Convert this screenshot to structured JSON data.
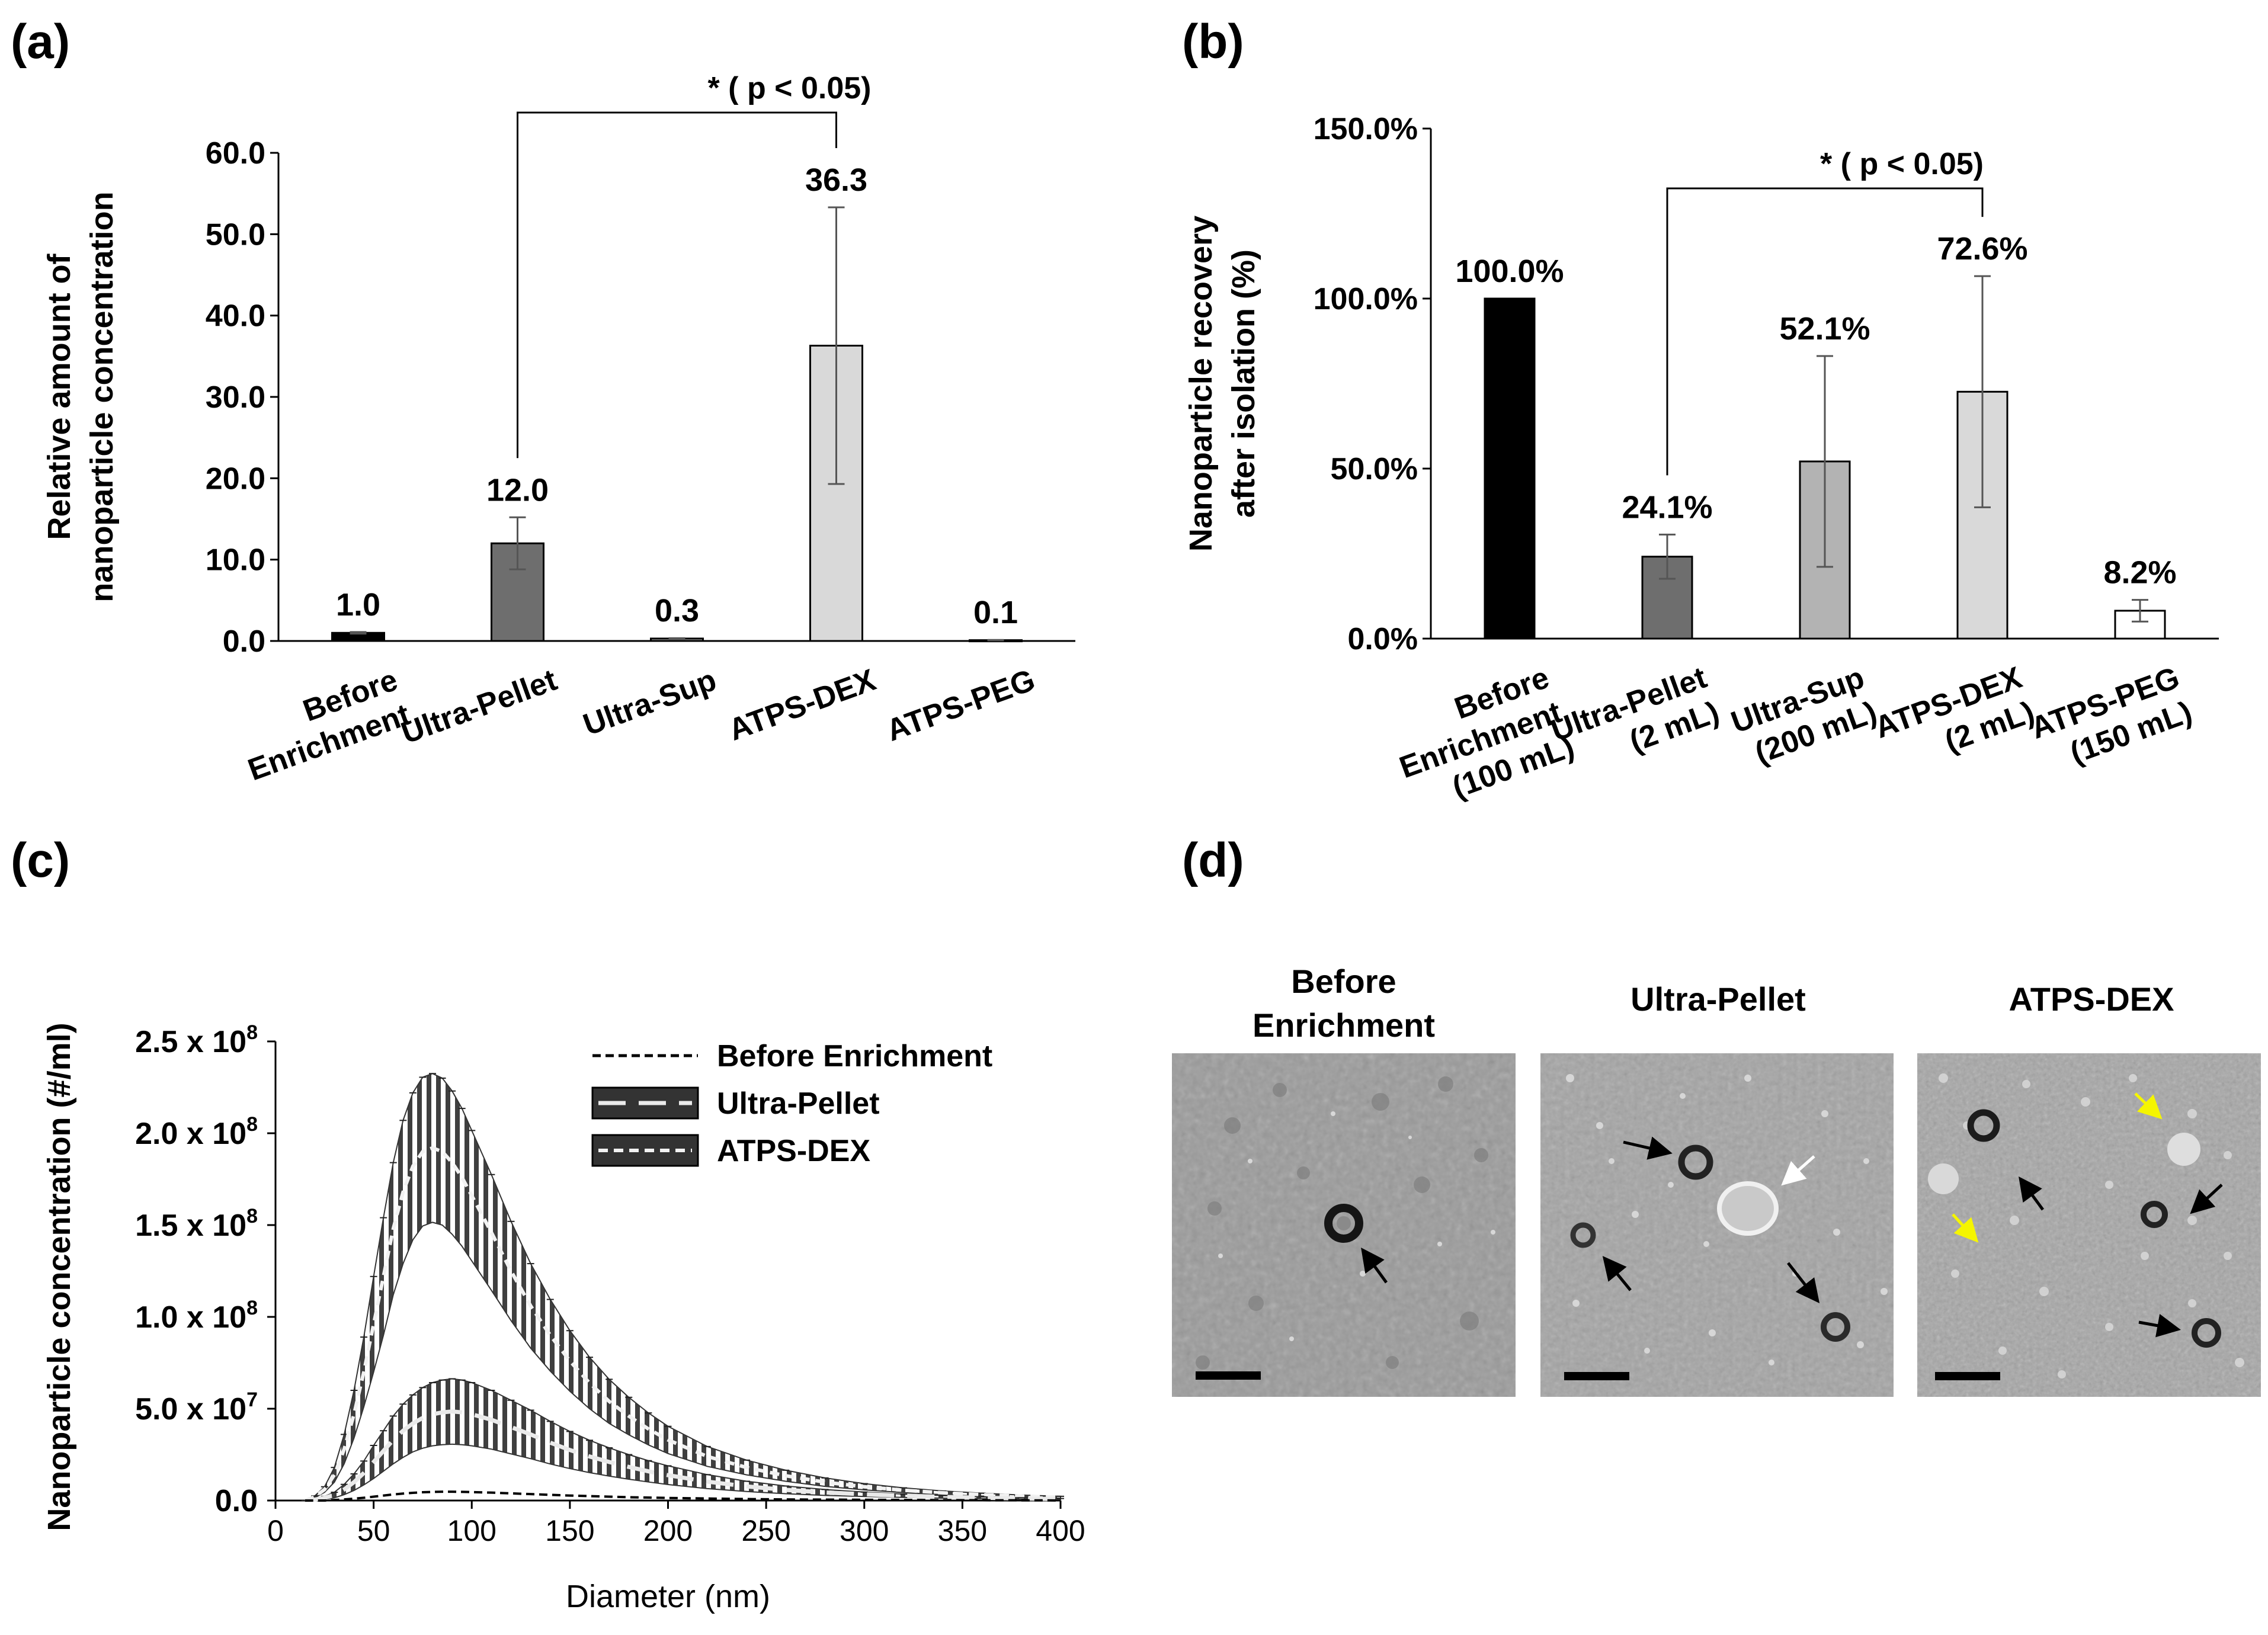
{
  "chart_data": [
    {
      "id": "a",
      "panel_label": "(a)",
      "type": "bar",
      "ylabel": [
        "Relative amount of",
        "nanoparticle concentration"
      ],
      "ylim": [
        0,
        60
      ],
      "yticks": [
        "0.0",
        "10.0",
        "20.0",
        "30.0",
        "40.0",
        "50.0",
        "60.0"
      ],
      "categories": [
        [
          "Before",
          "Enrichment"
        ],
        [
          "Ultra-Pellet"
        ],
        [
          "Ultra-Sup"
        ],
        [
          "ATPS-DEX"
        ],
        [
          "ATPS-PEG"
        ]
      ],
      "values": [
        1.0,
        12.0,
        0.3,
        36.3,
        0.1
      ],
      "errors": [
        0.1,
        3.2,
        0.05,
        17.0,
        0.03
      ],
      "value_labels": [
        "1.0",
        "12.0",
        "0.3",
        "36.3",
        "0.1"
      ],
      "colors": [
        "#000000",
        "#6e6e6e",
        "#a9a9a9",
        "#d9d9d9",
        "#ffffff"
      ],
      "significance": {
        "from": 1,
        "to": 3,
        "label": "* ( p < 0.05)"
      }
    },
    {
      "id": "b",
      "panel_label": "(b)",
      "type": "bar",
      "ylabel": [
        "Nanoparticle recovery",
        "after isolation (%)"
      ],
      "ylim": [
        0,
        150
      ],
      "yticks": [
        "0.0%",
        "50.0%",
        "100.0%",
        "150.0%"
      ],
      "categories": [
        [
          "Before",
          "Enrichment",
          "(100 mL)"
        ],
        [
          "Ultra-Pellet",
          "(2 mL)"
        ],
        [
          "Ultra-Sup",
          "(200 mL)"
        ],
        [
          "ATPS-DEX",
          "(2 mL)"
        ],
        [
          "ATPS-PEG",
          "(150 mL)"
        ]
      ],
      "values": [
        100.0,
        24.1,
        52.1,
        72.6,
        8.2
      ],
      "errors": [
        0,
        6.5,
        31.0,
        34.0,
        3.2
      ],
      "value_labels": [
        "100.0%",
        "24.1%",
        "52.1%",
        "72.6%",
        "8.2%"
      ],
      "colors": [
        "#000000",
        "#6e6e6e",
        "#b3b3b3",
        "#d9d9d9",
        "#ffffff"
      ],
      "significance": {
        "from": 1,
        "to": 3,
        "label": "* ( p < 0.05)"
      }
    },
    {
      "id": "c",
      "panel_label": "(c)",
      "type": "line",
      "xlabel": "Diameter (nm)",
      "ylabel": "Nanoparticle concentration (#/ml)",
      "xlim": [
        0,
        400
      ],
      "ylim": [
        0,
        250000000
      ],
      "xticks": [
        "0",
        "50",
        "100",
        "150",
        "200",
        "250",
        "300",
        "350",
        "400"
      ],
      "ytick_values": [
        0,
        50000000,
        100000000,
        150000000,
        200000000,
        250000000
      ],
      "ytick_labels": [
        {
          "mant": "0.0",
          "exp": ""
        },
        {
          "mant": "5.0 x 10",
          "exp": "7"
        },
        {
          "mant": "1.0 x 10",
          "exp": "8"
        },
        {
          "mant": "1.5 x 10",
          "exp": "8"
        },
        {
          "mant": "2.0 x 10",
          "exp": "8"
        },
        {
          "mant": "2.5 x 10",
          "exp": "8"
        }
      ],
      "legend": [
        "Before Enrichment",
        "Ultra-Pellet",
        "ATPS-DEX"
      ],
      "legend_position": "top-right",
      "x": [
        15,
        20,
        25,
        30,
        35,
        40,
        45,
        50,
        55,
        60,
        65,
        70,
        75,
        80,
        85,
        90,
        95,
        100,
        110,
        120,
        130,
        140,
        150,
        160,
        170,
        180,
        190,
        200,
        220,
        240,
        260,
        280,
        300,
        320,
        340,
        360,
        380,
        400
      ],
      "series": [
        {
          "name": "Before Enrichment",
          "mean": [
            0,
            0,
            0,
            300000.0,
            600000.0,
            1000000.0,
            1500000.0,
            2100000.0,
            2700000.0,
            3300000.0,
            3800000.0,
            4200000.0,
            4500000.0,
            4700000.0,
            4800000.0,
            4800000.0,
            4700000.0,
            4600000.0,
            4300000.0,
            3900000.0,
            3500000.0,
            3100000.0,
            2700000.0,
            2400000.0,
            2100000.0,
            1800000.0,
            1600000.0,
            1400000.0,
            1100000.0,
            800000.0,
            600000.0,
            500000.0,
            400000.0,
            300000.0,
            200000.0,
            150000.0,
            100000.0,
            50000.0
          ],
          "err": [
            0,
            0,
            0,
            100000.0,
            200000.0,
            300000.0,
            400000.0,
            500000.0,
            600000.0,
            700000.0,
            700000.0,
            800000.0,
            800000.0,
            800000.0,
            800000.0,
            800000.0,
            800000.0,
            700000.0,
            700000.0,
            600000.0,
            600000.0,
            500000.0,
            500000.0,
            400000.0,
            400000.0,
            300000.0,
            300000.0,
            300000.0,
            200000.0,
            200000.0,
            150000.0,
            100000.0,
            100000.0,
            100000.0,
            50000.0,
            50000.0,
            50000.0,
            30000.0
          ]
        },
        {
          "name": "Ultra-Pellet",
          "mean": [
            0,
            500000.0,
            1500000.0,
            3000000.0,
            6000000.0,
            10000000.0,
            15000000.0,
            21000000.0,
            27000000.0,
            33000000.0,
            38000000.0,
            42000000.0,
            45000000.0,
            47000000.0,
            48000000.0,
            48500000.0,
            48000000.0,
            47000000.0,
            44000000.0,
            40000000.0,
            36000000.0,
            31500000.0,
            27500000.0,
            24000000.0,
            21000000.0,
            18300000.0,
            15900000.0,
            13800000.0,
            10300000.0,
            7700000.0,
            5800000.0,
            4400000.0,
            3400000.0,
            2600000.0,
            2000000.0,
            1500000.0,
            1100000.0,
            800000.0
          ],
          "err": [
            0,
            300000.0,
            800000.0,
            1500000.0,
            2800000.0,
            4500000.0,
            6500000.0,
            9000000.0,
            11000000.0,
            13000000.0,
            14500000.0,
            15500000.0,
            16500000.0,
            17200000.0,
            17600000.0,
            17800000.0,
            17600000.0,
            17200000.0,
            16000000.0,
            14600000.0,
            13200000.0,
            11600000.0,
            10100000.0,
            8800000.0,
            7700000.0,
            6700000.0,
            5800000.0,
            5100000.0,
            3800000.0,
            2800000.0,
            2100000.0,
            1600000.0,
            1200000.0,
            900000.0,
            700000.0,
            500000.0,
            400000.0,
            300000.0
          ]
        },
        {
          "name": "ATPS-DEX",
          "mean": [
            0,
            2000000.0,
            6000000.0,
            14000000.0,
            28000000.0,
            47000000.0,
            70000000.0,
            96000000.0,
            122000000.0,
            148000000.0,
            168000000.0,
            182000000.0,
            190000000.0,
            192000000.0,
            190000000.0,
            184000000.0,
            176000000.0,
            166000000.0,
            146000000.0,
            125000000.0,
            106000000.0,
            90000000.0,
            76000000.0,
            64000000.0,
            54000000.0,
            46000000.0,
            39000000.0,
            33000000.0,
            24000000.0,
            18000000.0,
            13500000.0,
            10000000.0,
            7500000.0,
            5600000.0,
            4200000.0,
            3200000.0,
            2400000.0,
            1800000.0
          ],
          "err": [
            0,
            500000.0,
            1500000.0,
            4000000.0,
            8000000.0,
            13000000.0,
            19000000.0,
            26000000.0,
            32000000.0,
            36000000.0,
            39000000.0,
            40000000.0,
            40500000.0,
            40500000.0,
            40000000.0,
            39000000.0,
            37500000.0,
            35500000.0,
            31500000.0,
            27000000.0,
            23000000.0,
            19500000.0,
            16500000.0,
            14000000.0,
            12000000.0,
            10200000.0,
            8700000.0,
            7400000.0,
            5400000.0,
            4000000.0,
            3000000.0,
            2300000.0,
            1700000.0,
            1300000.0,
            1000000.0,
            800000.0,
            600000.0,
            500000.0
          ]
        }
      ]
    }
  ],
  "micrographs": {
    "panel_label": "(d)",
    "titles": [
      [
        "Before",
        "Enrichment"
      ],
      [
        "Ultra-Pellet"
      ],
      [
        "ATPS-DEX"
      ]
    ]
  },
  "colors": {
    "axis": "#000000",
    "curve_band": "#333333",
    "curve_line_light": "#f2f2f2",
    "arrow_yellow": "#f5f500",
    "arrow_white": "#ffffff"
  }
}
